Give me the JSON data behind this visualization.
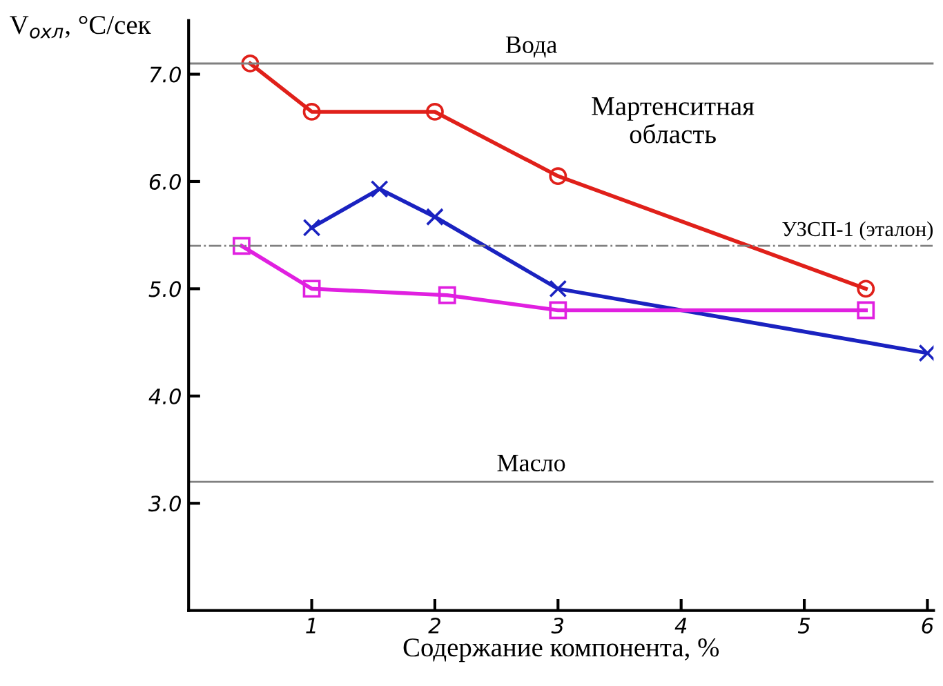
{
  "chart_data": {
    "type": "line",
    "xlabel": "Содержание компонента, %",
    "ylabel": "V$_{охл}$, °C/сек",
    "xlim": [
      0,
      6.05
    ],
    "ylim": [
      2.0,
      7.5
    ],
    "xticks": [
      1,
      2,
      3,
      4,
      5,
      6
    ],
    "yticks": [
      {
        "value": 3,
        "label": "3.0"
      },
      {
        "value": 4,
        "label": "4.0"
      },
      {
        "value": 5,
        "label": "5.0"
      },
      {
        "value": 6,
        "label": "6.0"
      },
      {
        "value": 7,
        "label": "7.0"
      }
    ],
    "grid": false,
    "legend": false,
    "series": [
      {
        "color": "#e0201a",
        "marker": "circle",
        "x": [
          0.5,
          1,
          2,
          3,
          5.5
        ],
        "values": [
          7.1,
          6.65,
          6.65,
          6.05,
          5.0
        ]
      },
      {
        "color": "#1a22c0",
        "marker": "cross",
        "x": [
          1,
          1.55,
          2,
          3,
          6
        ],
        "values": [
          5.57,
          5.93,
          5.67,
          5.0,
          4.4
        ]
      },
      {
        "color": "#e020e0",
        "marker": "square",
        "x": [
          0.43,
          1,
          2.1,
          3,
          5.5
        ],
        "values": [
          5.4,
          5.0,
          4.94,
          4.8,
          4.8
        ]
      }
    ],
    "ref_lines": [
      {
        "axis": "y",
        "value": 7.1,
        "label": "Вода",
        "color": "#808080",
        "line_style": "solid"
      },
      {
        "axis": "y",
        "value": 5.4,
        "label": "УЗСП-1 (эталон)",
        "color": "#808080",
        "line_style": "dashdot"
      },
      {
        "axis": "y",
        "value": 3.2,
        "label": "Масло",
        "color": "#808080",
        "line_style": "solid"
      }
    ],
    "annotations": [
      "Мартенситная\nобласть"
    ]
  }
}
